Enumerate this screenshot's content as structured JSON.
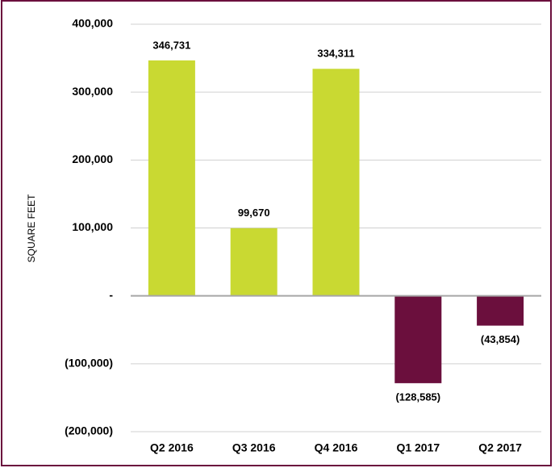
{
  "chart_data": {
    "type": "bar",
    "y_label": "SQUARE FEET",
    "categories": [
      "Q2 2016",
      "Q3 2016",
      "Q4 2016",
      "Q1 2017",
      "Q2 2017"
    ],
    "values": [
      346731,
      99670,
      334311,
      -128585,
      -43854
    ],
    "value_labels": [
      "346,731",
      "99,670",
      "334,311",
      "(128,585)",
      "(43,854)"
    ],
    "colors": [
      "#c9d932",
      "#c9d932",
      "#c9d932",
      "#6b0f3d",
      "#6b0f3d"
    ],
    "ylim": [
      -200000,
      400000
    ],
    "yticks": [
      {
        "value": -200000,
        "label": "(200,000)"
      },
      {
        "value": -100000,
        "label": "(100,000)"
      },
      {
        "value": 0,
        "label": "-"
      },
      {
        "value": 100000,
        "label": "100,000"
      },
      {
        "value": 200000,
        "label": "200,000"
      },
      {
        "value": 300000,
        "label": "300,000"
      },
      {
        "value": 400000,
        "label": "400,000"
      }
    ],
    "grid": true
  }
}
